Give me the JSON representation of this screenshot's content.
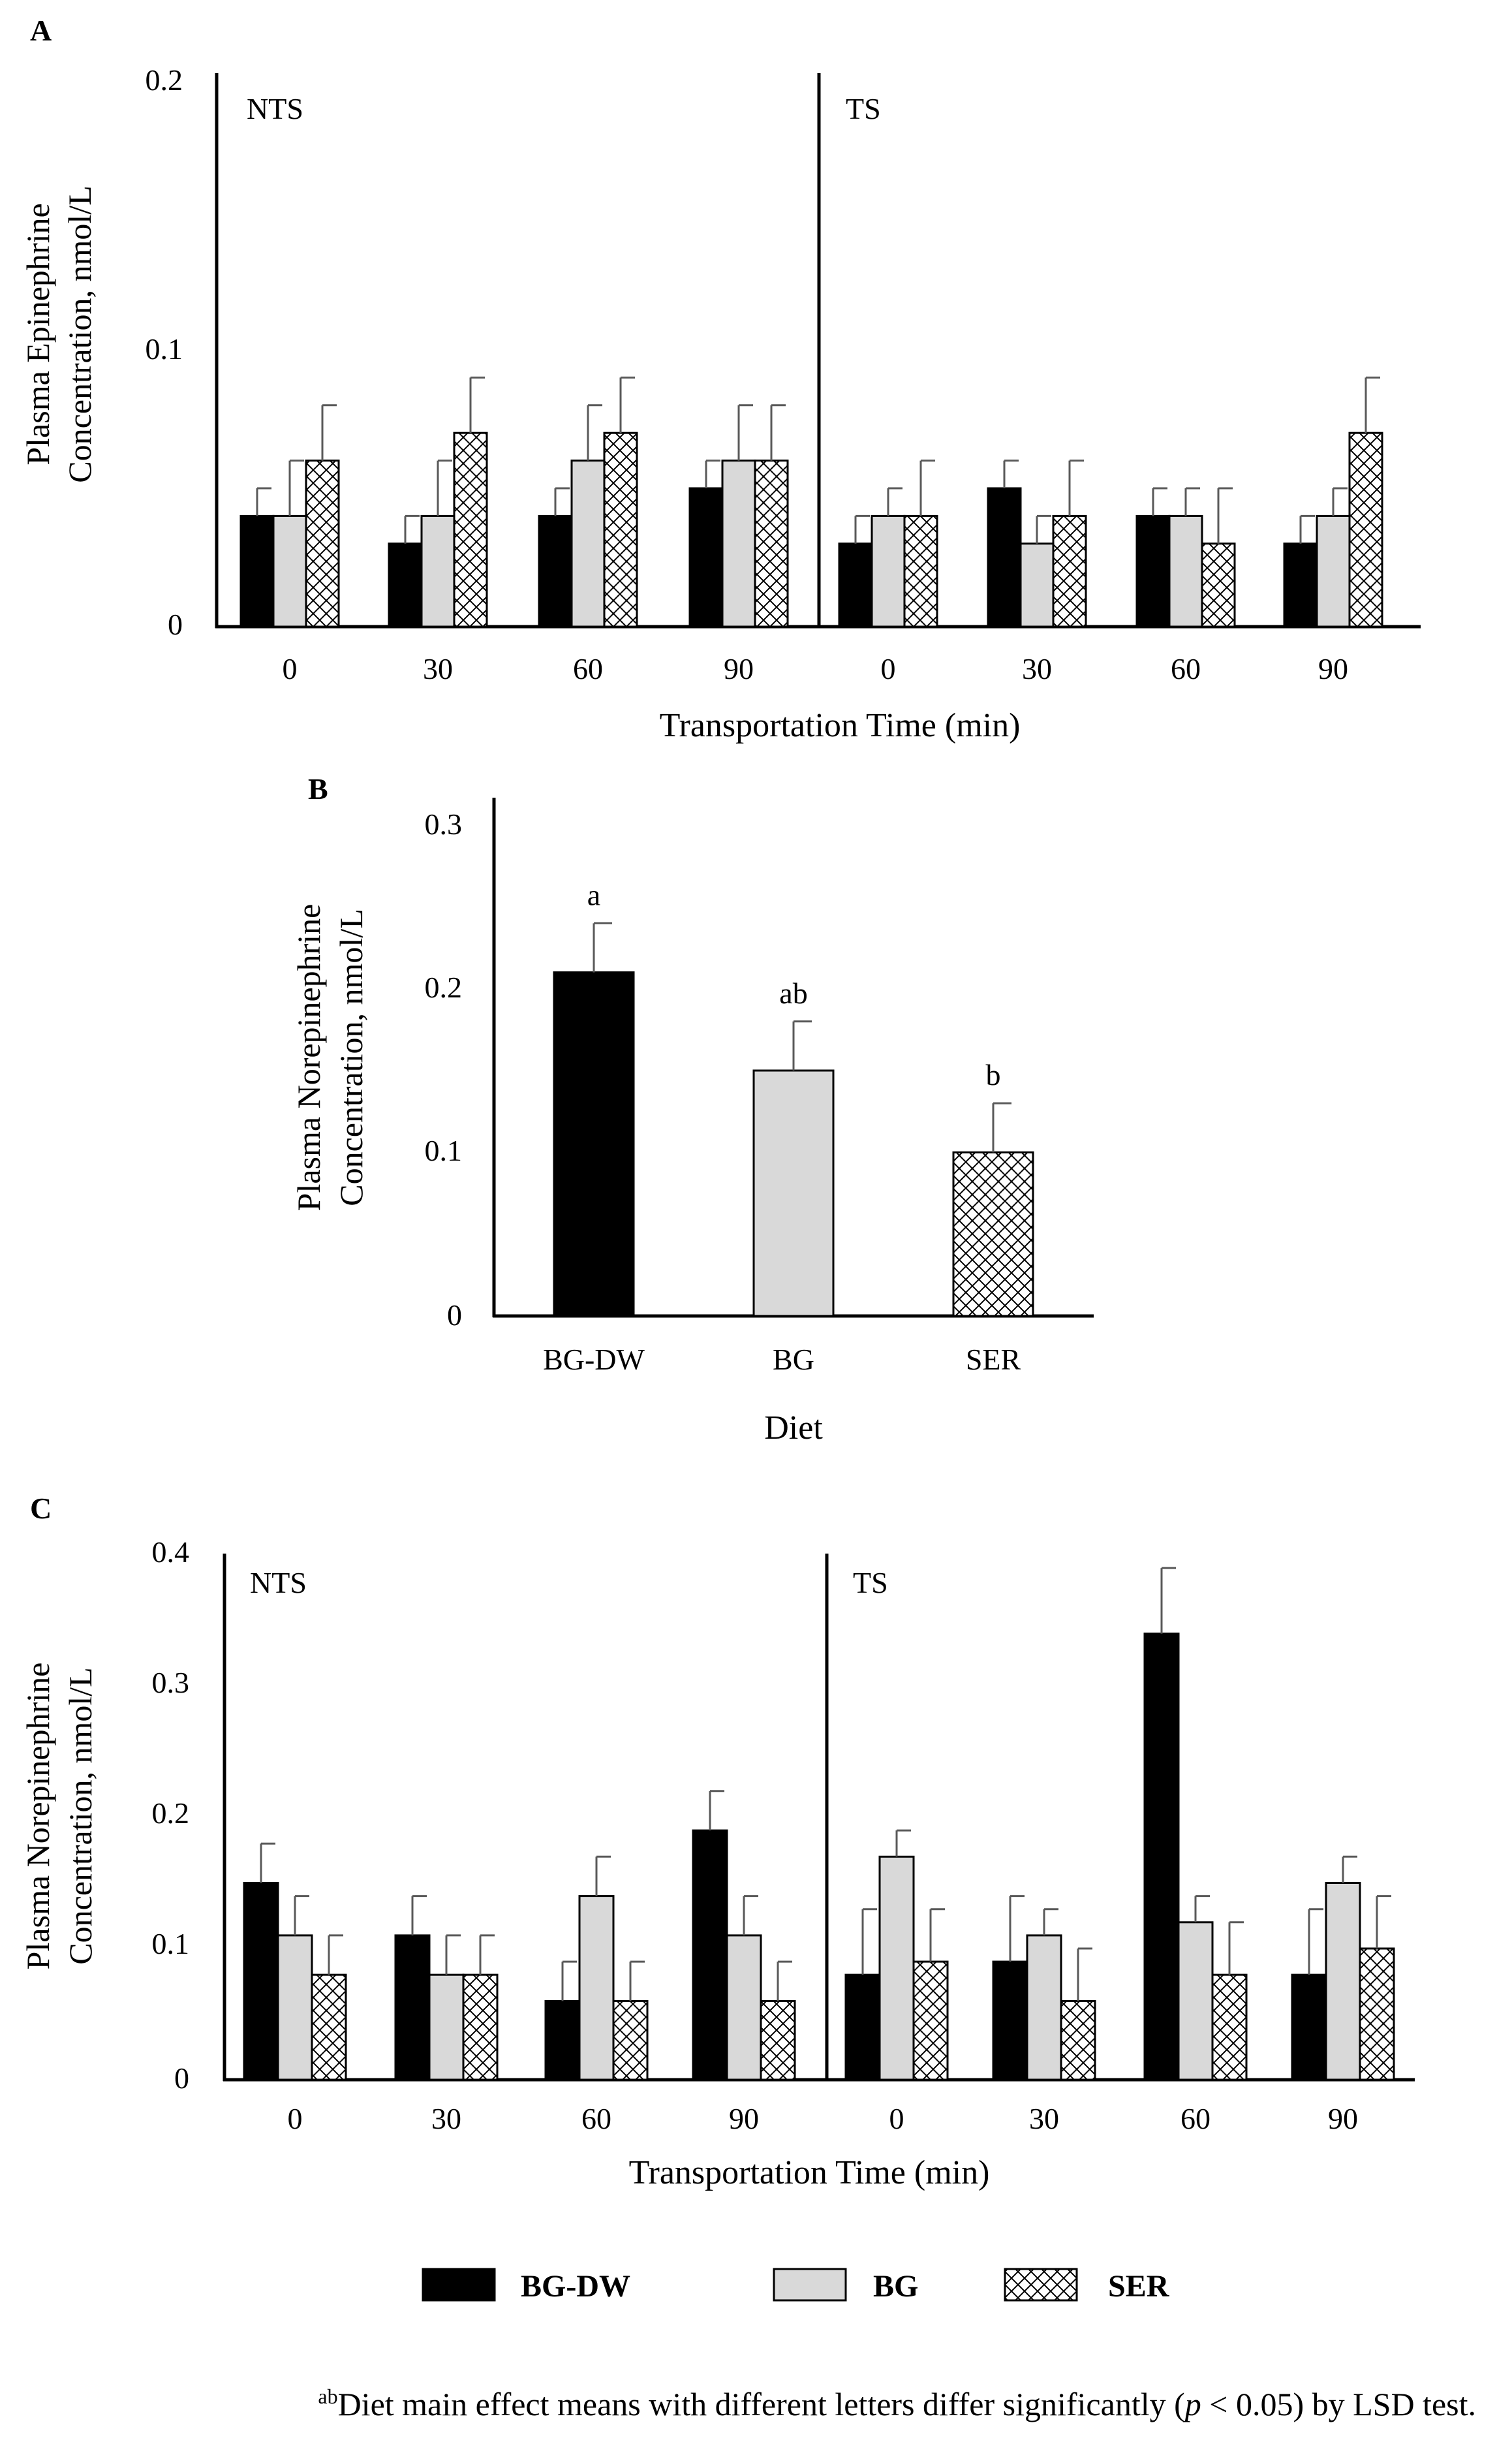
{
  "colors": {
    "BG-DW": "#000000",
    "BG": "#d9d9d9",
    "SER": "hatch-white",
    "axis": "#000000",
    "error_bar": "#595959"
  },
  "legend": {
    "items": [
      "BG-DW",
      "BG",
      "SER"
    ]
  },
  "footnote": {
    "superscript": "ab",
    "text_before": "Diet main effect means with different letters differ significantly  (",
    "italic": "p",
    "text_after": " < 0.05)  by LSD test."
  },
  "chart_data": [
    {
      "panel": "A",
      "type": "bar",
      "ylabel_line1": "Plasma Epinephrine",
      "ylabel_line2": "Concentration, nmol/L",
      "xlabel": "Transportation Time (min)",
      "ylim": [
        0,
        0.2
      ],
      "yticks": [
        "0",
        "0.1",
        "0.2"
      ],
      "ytick_values": [
        0,
        0.1,
        0.2
      ],
      "groups": [
        {
          "label": "NTS",
          "categories": [
            "0",
            "30",
            "60",
            "90"
          ],
          "series": [
            {
              "name": "BG-DW",
              "values": [
                0.04,
                0.03,
                0.04,
                0.05
              ],
              "errors": [
                0.01,
                0.01,
                0.01,
                0.01
              ]
            },
            {
              "name": "BG",
              "values": [
                0.04,
                0.04,
                0.06,
                0.06
              ],
              "errors": [
                0.02,
                0.02,
                0.02,
                0.02
              ]
            },
            {
              "name": "SER",
              "values": [
                0.06,
                0.07,
                0.07,
                0.06
              ],
              "errors": [
                0.02,
                0.02,
                0.02,
                0.02
              ]
            }
          ]
        },
        {
          "label": "TS",
          "categories": [
            "0",
            "30",
            "60",
            "90"
          ],
          "series": [
            {
              "name": "BG-DW",
              "values": [
                0.03,
                0.05,
                0.04,
                0.03
              ],
              "errors": [
                0.01,
                0.01,
                0.01,
                0.01
              ]
            },
            {
              "name": "BG",
              "values": [
                0.04,
                0.03,
                0.04,
                0.04
              ],
              "errors": [
                0.01,
                0.01,
                0.01,
                0.01
              ]
            },
            {
              "name": "SER",
              "values": [
                0.04,
                0.04,
                0.03,
                0.07
              ],
              "errors": [
                0.02,
                0.02,
                0.02,
                0.02
              ]
            }
          ]
        }
      ]
    },
    {
      "panel": "B",
      "type": "bar",
      "ylabel_line1": "Plasma Norepinephrine",
      "ylabel_line2": "Concentration, nmol/L",
      "xlabel": "Diet",
      "ylim": [
        0,
        0.3
      ],
      "yticks": [
        "0",
        "0.1",
        "0.2",
        "0.3"
      ],
      "ytick_values": [
        0,
        0.1,
        0.2,
        0.3
      ],
      "categories": [
        "BG-DW",
        "BG",
        "SER"
      ],
      "values": [
        0.21,
        0.15,
        0.1
      ],
      "errors": [
        0.03,
        0.03,
        0.03
      ],
      "letters": [
        "a",
        "ab",
        "b"
      ]
    },
    {
      "panel": "C",
      "type": "bar",
      "ylabel_line1": "Plasma Norepinephrine",
      "ylabel_line2": "Concentration, nmol/L",
      "xlabel": "Transportation Time (min)",
      "ylim": [
        0,
        0.4
      ],
      "yticks": [
        "0",
        "0.1",
        "0.2",
        "0.3",
        "0.4"
      ],
      "ytick_values": [
        0,
        0.1,
        0.2,
        0.3,
        0.4
      ],
      "groups": [
        {
          "label": "NTS",
          "categories": [
            "0",
            "30",
            "60",
            "90"
          ],
          "series": [
            {
              "name": "BG-DW",
              "values": [
                0.15,
                0.11,
                0.06,
                0.19
              ],
              "errors": [
                0.03,
                0.03,
                0.03,
                0.03
              ]
            },
            {
              "name": "BG",
              "values": [
                0.11,
                0.08,
                0.14,
                0.11
              ],
              "errors": [
                0.03,
                0.03,
                0.03,
                0.03
              ]
            },
            {
              "name": "SER",
              "values": [
                0.08,
                0.08,
                0.06,
                0.06
              ],
              "errors": [
                0.03,
                0.03,
                0.03,
                0.03
              ]
            }
          ]
        },
        {
          "label": "TS",
          "categories": [
            "0",
            "30",
            "60",
            "90"
          ],
          "series": [
            {
              "name": "BG-DW",
              "values": [
                0.08,
                0.09,
                0.34,
                0.08
              ],
              "errors": [
                0.05,
                0.05,
                0.05,
                0.05
              ]
            },
            {
              "name": "BG",
              "values": [
                0.17,
                0.11,
                0.12,
                0.15
              ],
              "errors": [
                0.02,
                0.02,
                0.02,
                0.02
              ]
            },
            {
              "name": "SER",
              "values": [
                0.09,
                0.06,
                0.08,
                0.1
              ],
              "errors": [
                0.04,
                0.04,
                0.04,
                0.04
              ]
            }
          ]
        }
      ]
    }
  ]
}
